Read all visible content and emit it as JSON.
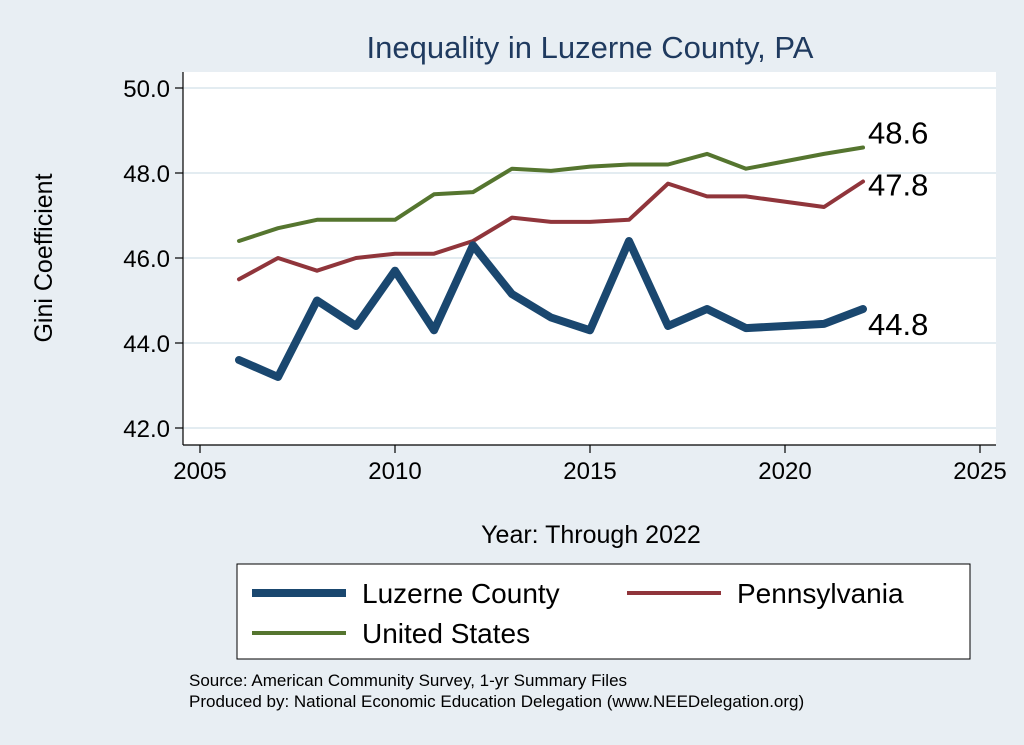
{
  "chart_data": {
    "type": "line",
    "title": "Inequality in Luzerne County, PA",
    "xlabel": "Year: Through 2022",
    "ylabel": "Gini Coefficient",
    "xlim": [
      2005,
      2025
    ],
    "ylim": [
      42,
      50
    ],
    "xticks": [
      2005,
      2010,
      2015,
      2020,
      2025
    ],
    "yticks": [
      42,
      44,
      46,
      48,
      50
    ],
    "ytick_labels": [
      "42.0",
      "44.0",
      "46.0",
      "48.0",
      "50.0"
    ],
    "grid": true,
    "legend_position": "bottom",
    "series": [
      {
        "name": "Luzerne County",
        "color": "#1a476f",
        "x": [
          2006,
          2007,
          2008,
          2009,
          2010,
          2011,
          2012,
          2013,
          2014,
          2015,
          2016,
          2017,
          2018,
          2019,
          2021,
          2022
        ],
        "values": [
          43.6,
          43.2,
          45.0,
          44.4,
          45.7,
          44.3,
          46.3,
          45.15,
          44.6,
          44.3,
          46.4,
          44.4,
          44.8,
          44.35,
          44.45,
          44.8
        ],
        "end_label": "44.8"
      },
      {
        "name": "Pennsylvania",
        "color": "#90353b",
        "x": [
          2006,
          2007,
          2008,
          2009,
          2010,
          2011,
          2012,
          2013,
          2014,
          2015,
          2016,
          2017,
          2018,
          2019,
          2021,
          2022
        ],
        "values": [
          45.5,
          46.0,
          45.7,
          46.0,
          46.1,
          46.1,
          46.4,
          46.95,
          46.85,
          46.85,
          46.9,
          47.75,
          47.45,
          47.45,
          47.2,
          47.8
        ],
        "end_label": "47.8"
      },
      {
        "name": "United States",
        "color": "#55752f",
        "x": [
          2006,
          2007,
          2008,
          2009,
          2010,
          2011,
          2012,
          2013,
          2014,
          2015,
          2016,
          2017,
          2018,
          2019,
          2021,
          2022
        ],
        "values": [
          46.4,
          46.7,
          46.9,
          46.9,
          46.9,
          47.5,
          47.55,
          48.1,
          48.05,
          48.15,
          48.2,
          48.2,
          48.45,
          48.1,
          48.45,
          48.6
        ],
        "end_label": "48.6"
      }
    ]
  },
  "notes": {
    "source": "Source: American Community Survey, 1-yr Summary Files",
    "produced": "Produced by: National Economic Education Delegation (www.NEEDelegation.org)"
  }
}
